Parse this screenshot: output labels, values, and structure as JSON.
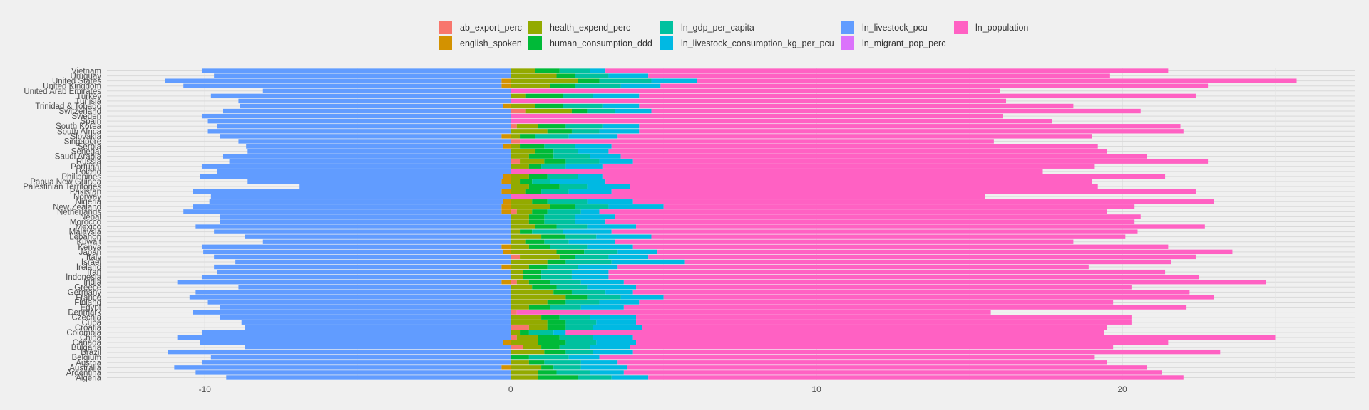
{
  "chart_data": {
    "type": "bar",
    "stacked": true,
    "orientation": "horizontal",
    "title": "",
    "xlabel": "",
    "ylabel": "",
    "xlim": [
      -13.2,
      27.6
    ],
    "x_ticks": [
      -10,
      0,
      10,
      20
    ],
    "x_tick_labels": [
      "-10",
      "0",
      "10",
      "20"
    ],
    "grid": true,
    "legend_position": "top",
    "categories": [
      "Vietnam",
      "Uruguay",
      "United States",
      "United Kingdom",
      "United Arab Emirates",
      "Turkey",
      "Tunisia",
      "Trinidad & Tobago",
      "Switzerland",
      "Sweden",
      "Spain",
      "South Korea",
      "South Africa",
      "Slovakia",
      "Singapore",
      "Serbia",
      "Senegal",
      "Saudi Arabia",
      "Russia",
      "Portugal",
      "Poland",
      "Philippines",
      "Papua New Guinea",
      "Palestinian Territories",
      "Pakistan",
      "Norway",
      "Nigeria",
      "New Zealand",
      "Netherlands",
      "Nepal",
      "Morocco",
      "Mexico",
      "Malaysia",
      "Lebanon",
      "Kuwait",
      "Kenya",
      "Japan",
      "Italy",
      "Israel",
      "Ireland",
      "Iran",
      "Indonesia",
      "India",
      "Greece",
      "Germany",
      "France",
      "Finland",
      "Egypt",
      "Denmark",
      "Czechia",
      "Cuba",
      "Croatia",
      "Colombia",
      "China",
      "Canada",
      "Bulgaria",
      "Brazil",
      "Belgium",
      "Austria",
      "Australia",
      "Argentina",
      "Algeria"
    ],
    "series": [
      {
        "name": "ab_export_perc",
        "color": "#F8766D",
        "values": [
          0,
          0,
          0,
          0,
          0,
          0,
          0,
          0,
          0.5,
          0,
          0,
          0.2,
          0,
          0,
          0.3,
          0,
          0,
          0,
          0.3,
          0,
          0,
          0,
          0,
          0,
          0,
          0,
          0,
          0,
          0.2,
          0,
          0,
          0,
          0,
          0,
          0,
          0,
          0,
          0.3,
          0,
          0,
          0,
          0,
          0.2,
          0,
          0,
          0,
          0,
          0,
          0.2,
          0,
          0,
          0.6,
          0,
          0.2,
          0,
          0.4,
          0,
          0,
          0,
          0,
          0,
          0
        ]
      },
      {
        "name": "english_spoken",
        "color": "#D39200",
        "values": [
          0,
          0,
          -0.3,
          -0.3,
          0,
          0,
          0,
          -0.25,
          0,
          0,
          0,
          0,
          0,
          -0.3,
          0,
          -0.25,
          0,
          0,
          0,
          0,
          0,
          -0.25,
          -0.3,
          0,
          -0.3,
          0,
          -0.25,
          -0.3,
          -0.3,
          0,
          0,
          0,
          0,
          0,
          0,
          -0.3,
          -0.25,
          0,
          0,
          -0.3,
          0,
          0,
          -0.3,
          0,
          0,
          0,
          0,
          0,
          0,
          0,
          0,
          0,
          0,
          0,
          -0.25,
          0,
          0,
          0,
          0,
          -0.3,
          0,
          0
        ]
      },
      {
        "name": "health_expend_perc",
        "color": "#93AA00",
        "values": [
          0.8,
          1.5,
          2.2,
          1.3,
          0,
          0.5,
          0,
          0.8,
          1.5,
          0,
          0,
          0.7,
          1.2,
          0.3,
          0,
          0.3,
          0.8,
          0.6,
          0.8,
          0.6,
          0,
          0.6,
          0.3,
          0.6,
          0.5,
          0,
          0.7,
          1.3,
          0.5,
          0.6,
          0.6,
          0.8,
          0.3,
          1.0,
          0.5,
          0.6,
          1.5,
          1.3,
          1.2,
          0.6,
          0.4,
          0.4,
          0.4,
          0.7,
          1.4,
          1.8,
          1.2,
          0.6,
          0,
          1.0,
          1.2,
          0.6,
          0.3,
          0.7,
          0.9,
          0.6,
          1.1,
          0,
          0.6,
          1.0,
          0.9,
          0.9
        ]
      },
      {
        "name": "human_consumption_ddd",
        "color": "#00BA38",
        "values": [
          0.8,
          0.6,
          0.7,
          0.8,
          0,
          1.2,
          0,
          0.9,
          0.5,
          0,
          0,
          0.9,
          0.8,
          0.5,
          0,
          0.8,
          0.6,
          0.8,
          0.7,
          0.4,
          0,
          0.6,
          0.4,
          1.0,
          0.5,
          0,
          0.5,
          0.8,
          0.5,
          0.5,
          0.5,
          0.7,
          0.4,
          0.8,
          0.6,
          0.7,
          0.9,
          0.5,
          0.6,
          0.6,
          0.6,
          0.6,
          0.7,
          0.8,
          0.6,
          0.7,
          0.6,
          0.7,
          0,
          0.6,
          0.6,
          0.6,
          0.3,
          0.7,
          0.9,
          0.6,
          0.7,
          0.6,
          0.5,
          0.4,
          0.6,
          1.3
        ]
      },
      {
        "name": "ln_gdp_per_capita",
        "color": "#00C19F",
        "values": [
          1.0,
          1.1,
          1.7,
          1.5,
          0,
          1.0,
          0,
          1.3,
          0.9,
          0,
          0,
          1.2,
          0.9,
          1.1,
          0,
          1.0,
          0.8,
          1.2,
          1.1,
          0.8,
          0,
          1.0,
          0.6,
          0.9,
          0.9,
          0,
          1.3,
          1.1,
          1.1,
          1.0,
          1.0,
          1.0,
          1.0,
          1.0,
          0.8,
          1.2,
          1.1,
          1.1,
          1.5,
          1.0,
          1.0,
          1.0,
          1.0,
          1.0,
          1.1,
          1.1,
          1.1,
          1.0,
          0,
          1.0,
          1.0,
          0.9,
          0.8,
          1.1,
          1.0,
          1.0,
          0.9,
          1.3,
          1.2,
          0.9,
          1.1,
          1.1
        ]
      },
      {
        "name": "ln_livestock_consumption_kg_per_pcu",
        "color": "#00B9E3",
        "values": [
          0.5,
          1.3,
          1.5,
          1.3,
          0,
          1.5,
          0,
          1.2,
          1.2,
          0,
          0,
          1.2,
          1.3,
          1.6,
          0,
          1.2,
          1.0,
          1.0,
          1.1,
          1.2,
          0,
          0.8,
          1.8,
          1.4,
          1.4,
          0,
          1.5,
          1.8,
          0.6,
          1.3,
          1.0,
          1.6,
          1.6,
          1.8,
          1.5,
          1.5,
          1.3,
          1.3,
          2.4,
          1.3,
          1.2,
          1.2,
          1.4,
          1.6,
          0.9,
          1.4,
          1.3,
          1.4,
          0,
          1.5,
          1.3,
          1.6,
          0.4,
          1.3,
          1.3,
          1.3,
          1.3,
          1.0,
          1.2,
          1.5,
          1.1,
          1.2
        ]
      },
      {
        "name": "ln_livestock_pcu",
        "color": "#619CFF",
        "values": [
          -10.1,
          -9.7,
          -11.0,
          -10.4,
          -8.1,
          -9.8,
          -8.9,
          -8.6,
          -9.4,
          -10.1,
          -9.9,
          -9.6,
          -9.9,
          -9.2,
          -8.9,
          -8.4,
          -8.6,
          -9.4,
          -9.2,
          -10.1,
          -9.6,
          -9.9,
          -8.3,
          -6.9,
          -10.1,
          -9.8,
          -9.6,
          -10.1,
          -10.4,
          -9.5,
          -9.5,
          -10.3,
          -9.7,
          -8.7,
          -8.1,
          -9.8,
          -9.8,
          -9.7,
          -9.0,
          -9.4,
          -9.6,
          -10.1,
          -10.6,
          -8.9,
          -10.3,
          -10.5,
          -9.9,
          -9.5,
          -10.4,
          -9.5,
          -8.8,
          -8.7,
          -10.1,
          -10.9,
          -9.9,
          -8.7,
          -11.2,
          -9.8,
          -10.1,
          -10.7,
          -10.3,
          -9.3
        ]
      },
      {
        "name": "ln_migrant_pop_perc",
        "color": "#DB72FB",
        "values": [
          0,
          0,
          0,
          0,
          0,
          0,
          0,
          0,
          0,
          0,
          0,
          0,
          0,
          0,
          0,
          0,
          0,
          0,
          0,
          0,
          0,
          0,
          0,
          0,
          0,
          0,
          0,
          0,
          0,
          0,
          0,
          0,
          0,
          0,
          0,
          0,
          0,
          0,
          0,
          0,
          0,
          0,
          0,
          0,
          0,
          0,
          0,
          0,
          0,
          0,
          0,
          0,
          0,
          0,
          0,
          0,
          0,
          0,
          0,
          0,
          0,
          0
        ]
      },
      {
        "name": "ln_population",
        "color": "#FF61C3",
        "values": [
          18.4,
          15.1,
          19.6,
          17.9,
          16.0,
          18.2,
          16.2,
          14.2,
          16.0,
          16.1,
          17.7,
          17.7,
          17.8,
          15.5,
          15.5,
          15.9,
          16.3,
          17.2,
          18.8,
          16.1,
          17.4,
          18.4,
          15.9,
          15.3,
          19.1,
          15.5,
          19.0,
          15.4,
          16.6,
          17.2,
          17.3,
          18.6,
          17.2,
          15.5,
          15.0,
          17.5,
          18.8,
          17.9,
          15.9,
          15.4,
          18.2,
          19.3,
          21.0,
          16.2,
          18.2,
          18.0,
          15.5,
          18.4,
          15.5,
          16.2,
          16.2,
          15.2,
          17.6,
          21.0,
          17.4,
          15.8,
          19.2,
          16.2,
          16.0,
          17.0,
          17.6,
          17.5
        ]
      }
    ]
  },
  "legend": {
    "items": [
      {
        "label": "ab_export_perc",
        "color": "#F8766D"
      },
      {
        "label": "english_spoken",
        "color": "#D39200"
      },
      {
        "label": "health_expend_perc",
        "color": "#93AA00"
      },
      {
        "label": "human_consumption_ddd",
        "color": "#00BA38"
      },
      {
        "label": "ln_gdp_per_capita",
        "color": "#00C19F"
      },
      {
        "label": "ln_livestock_consumption_kg_per_pcu",
        "color": "#00B9E3"
      },
      {
        "label": "ln_livestock_pcu",
        "color": "#619CFF"
      },
      {
        "label": "ln_migrant_pop_perc",
        "color": "#DB72FB"
      },
      {
        "label": "ln_population",
        "color": "#FF61C3"
      }
    ]
  }
}
